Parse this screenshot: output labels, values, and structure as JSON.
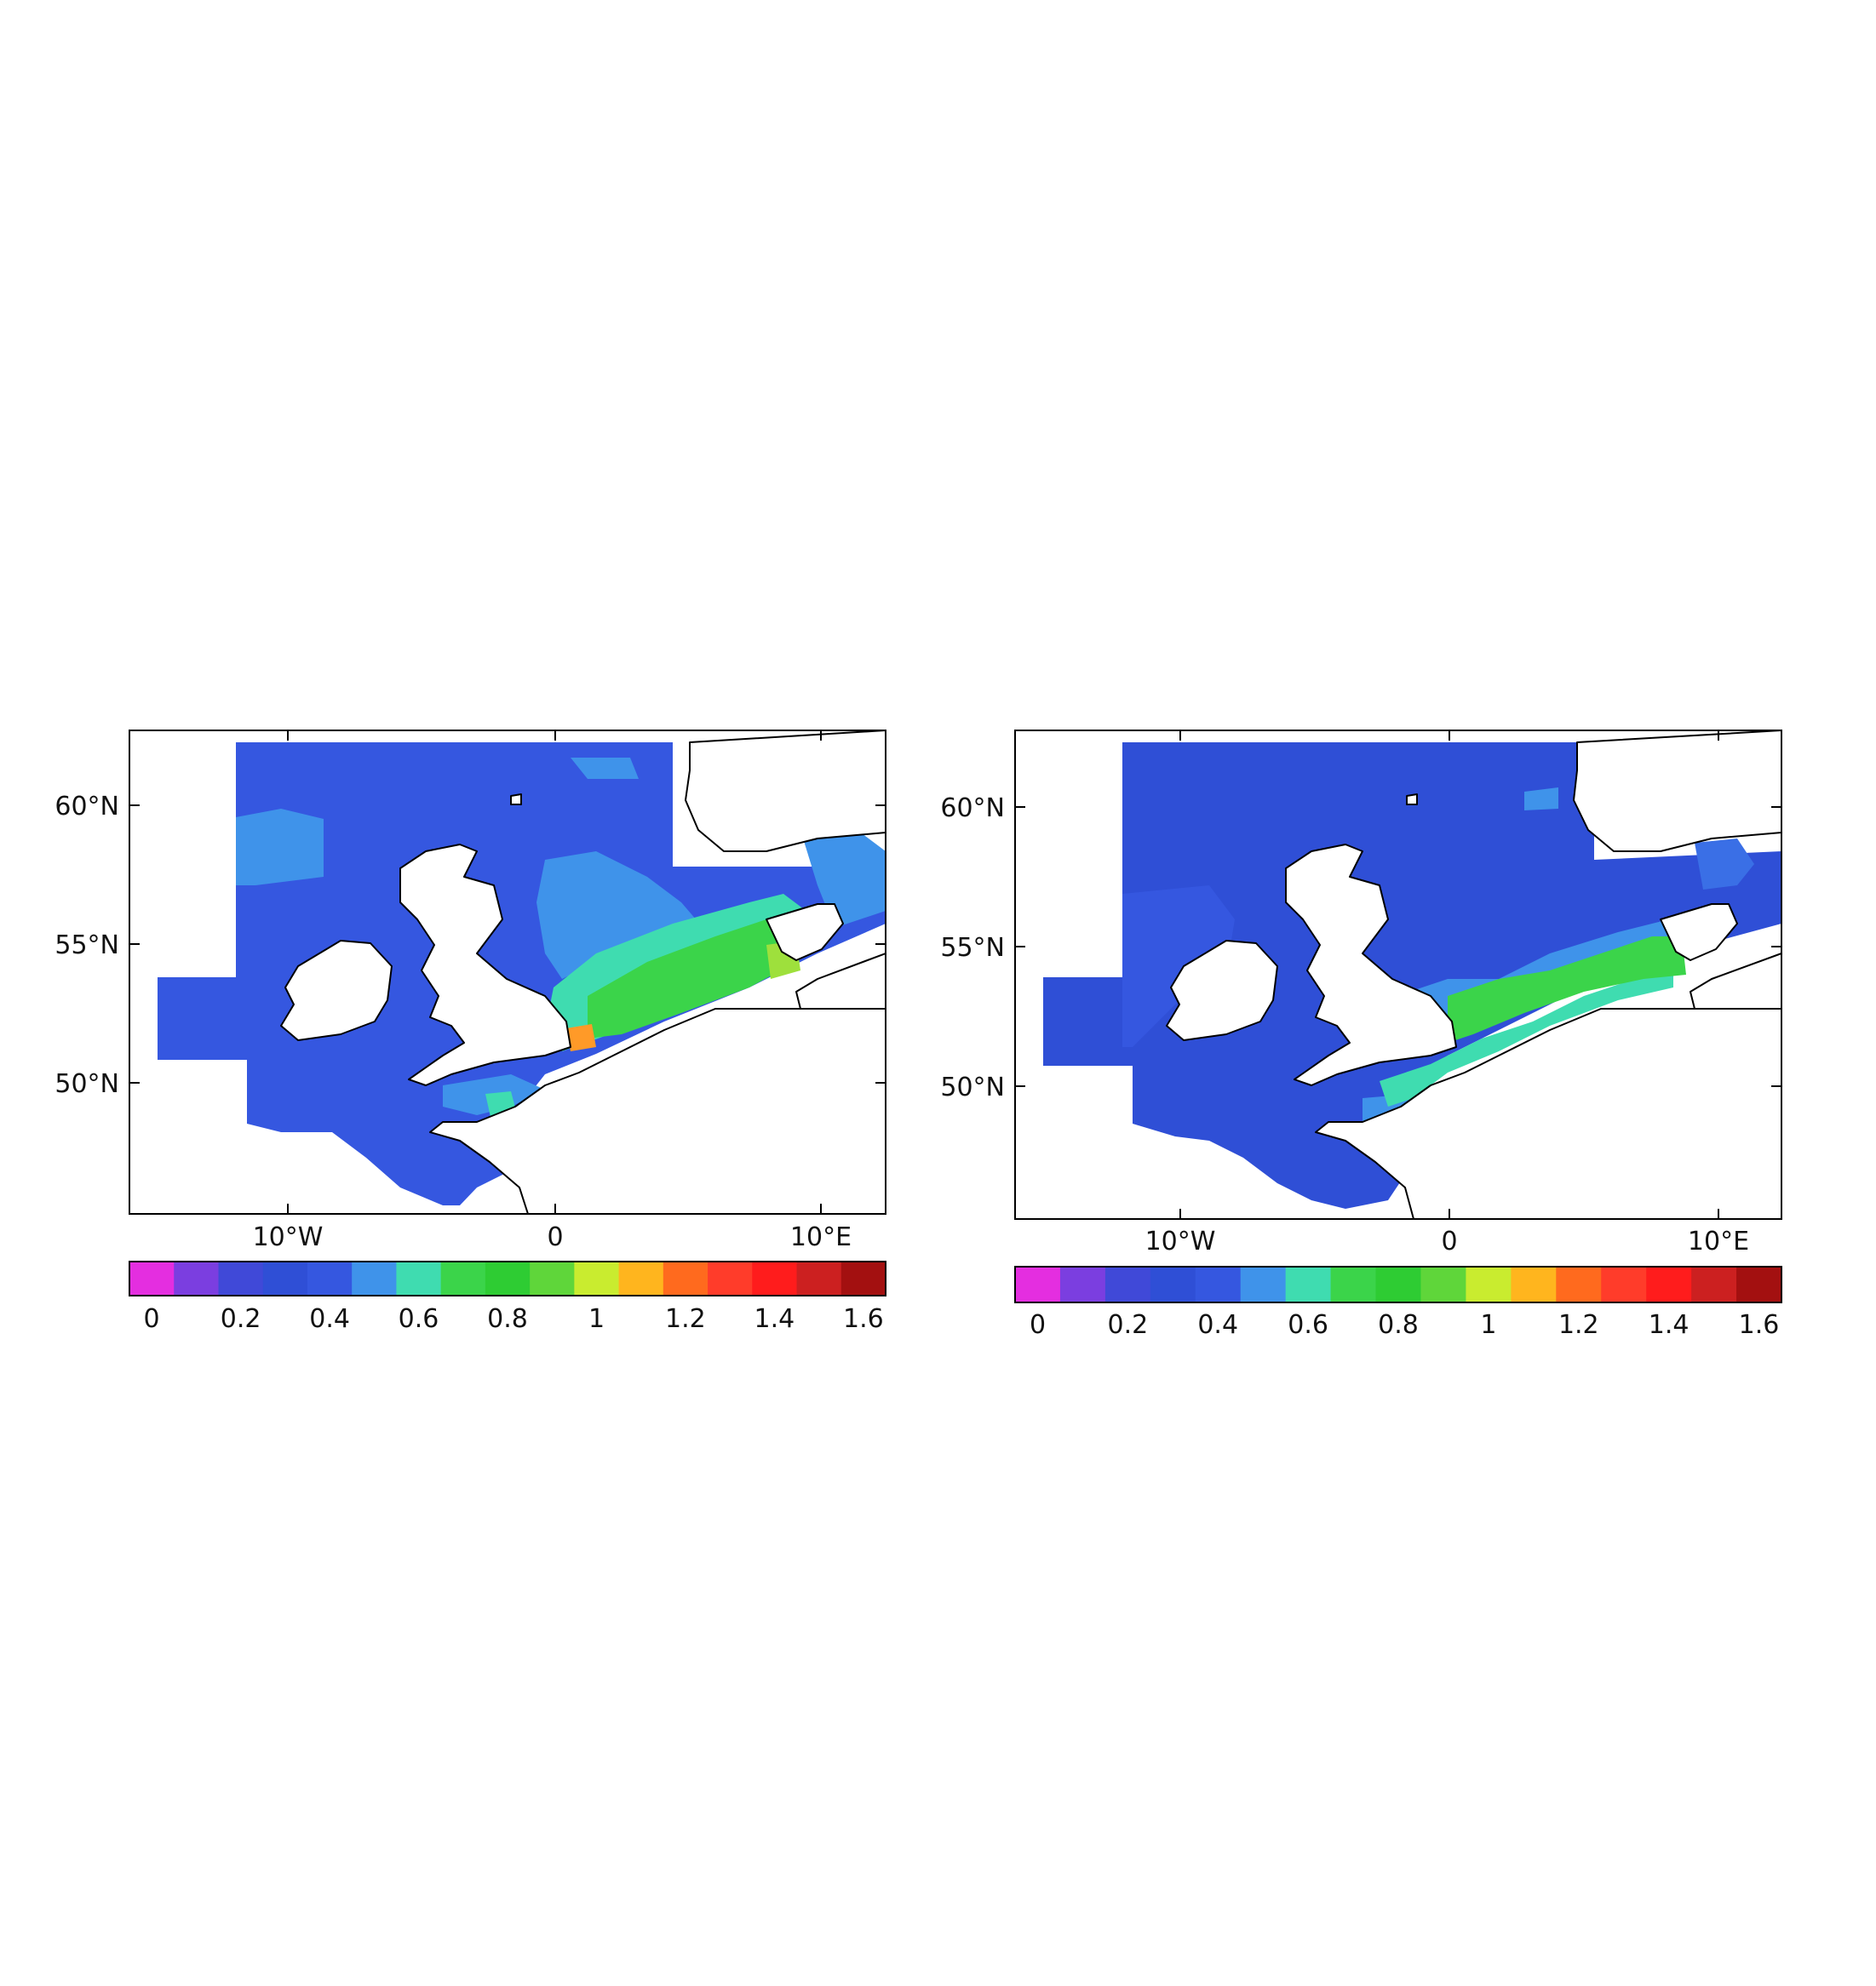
{
  "colors": {
    "ocean_dark": "#2f4fd6",
    "ocean": "#3557e0",
    "ocean_mid": "#3a6fe6",
    "ocean_light": "#3f93ea",
    "teal": "#3fdcb0",
    "green": "#3bd44a",
    "yellowgreen": "#9ee03c",
    "orange": "#ff9a28",
    "land": "#ffffff",
    "coast": "#000000"
  },
  "colorbar": {
    "colors": [
      "#e42ee0",
      "#7b3ee0",
      "#4049d8",
      "#2f4fd6",
      "#3557e0",
      "#3f93ea",
      "#3fdcb0",
      "#3bd44a",
      "#2ecc33",
      "#5fd63a",
      "#c9ec2f",
      "#ffb51e",
      "#ff6a1e",
      "#ff3c2a",
      "#ff1c1c",
      "#cc2020",
      "#a31010"
    ],
    "labels": [
      "0",
      "0.2",
      "0.4",
      "0.6",
      "0.8",
      "1",
      "1.2",
      "1.4",
      "1.6"
    ]
  },
  "maps": [
    {
      "id": "map-left",
      "lat_ticks": [
        "60°N",
        "55°N",
        "50°N"
      ],
      "lon_ticks": [
        "10°W",
        "0",
        "10°E"
      ],
      "hotspot": "orange"
    },
    {
      "id": "map-right",
      "lat_ticks": [
        "60°N",
        "55°N",
        "50°N"
      ],
      "lon_ticks": [
        "10°W",
        "0",
        "10°E"
      ],
      "hotspot": "none"
    }
  ]
}
